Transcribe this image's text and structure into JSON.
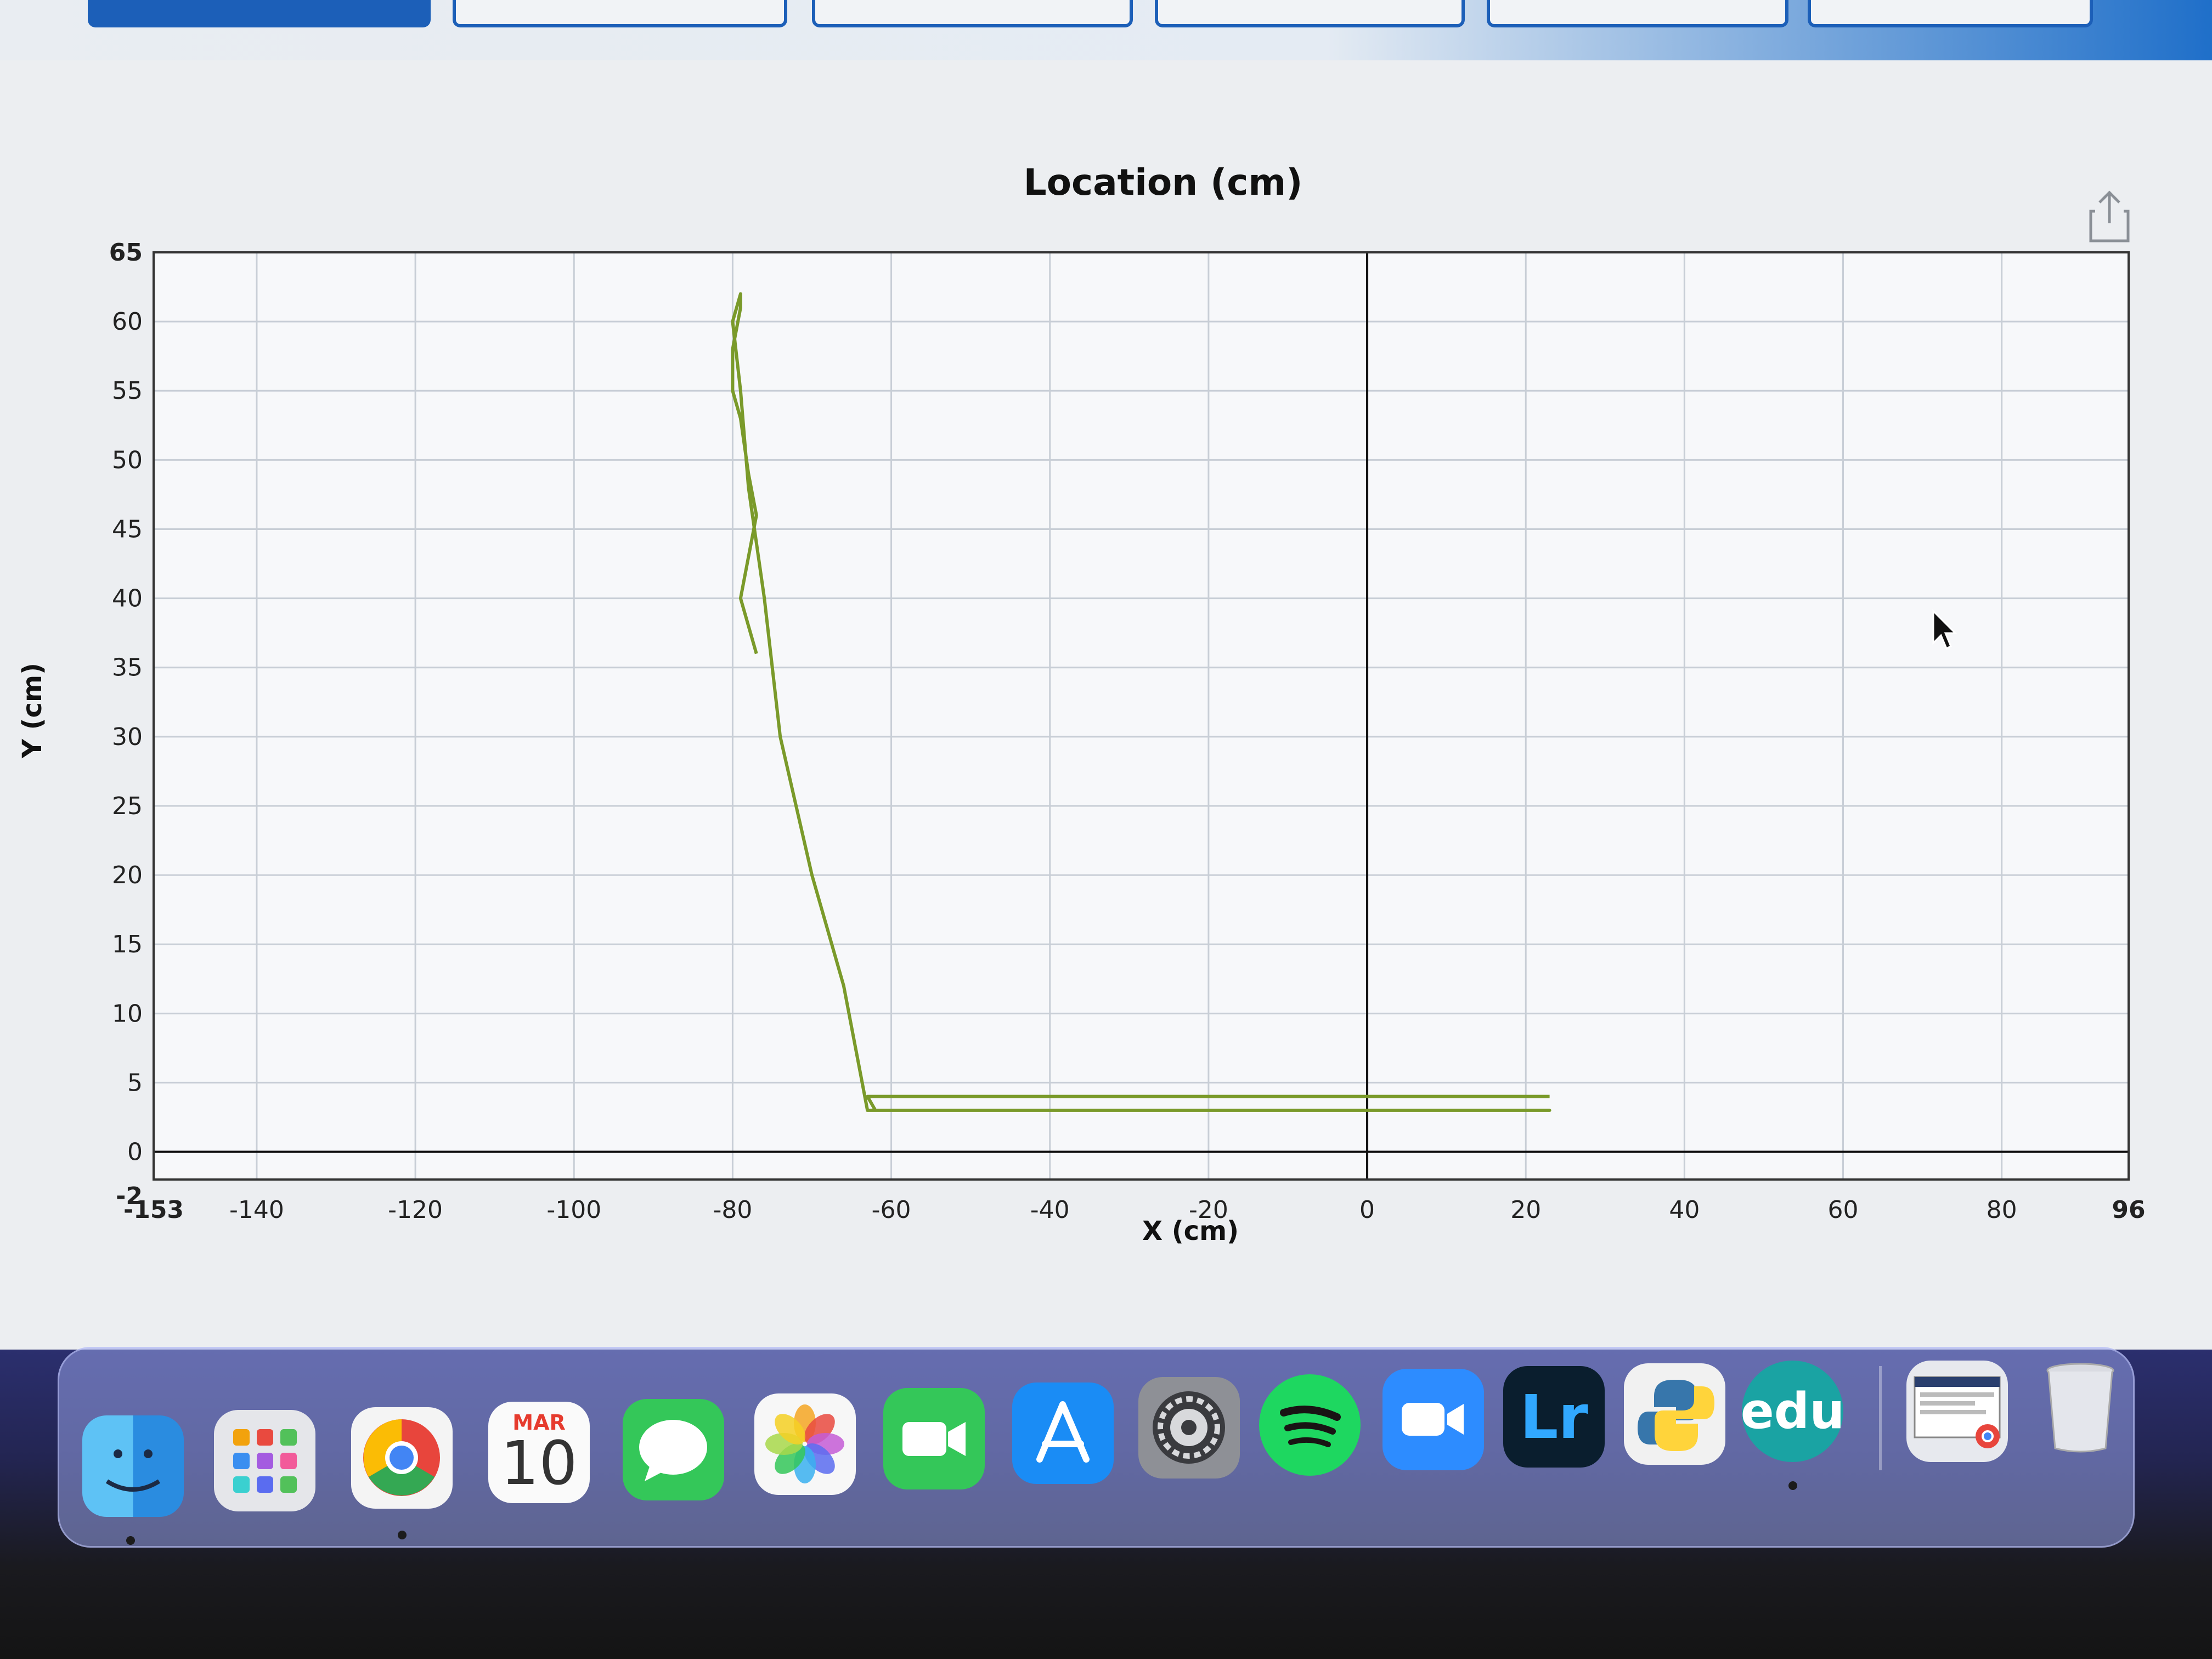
{
  "chart_data": {
    "type": "line",
    "title": "Location (cm)",
    "xlabel": "X (cm)",
    "ylabel": "Y (cm)",
    "xlim": [
      -153,
      96
    ],
    "ylim": [
      -2,
      65
    ],
    "x_ticks": [
      -153,
      -140,
      -120,
      -100,
      -80,
      -60,
      -40,
      -20,
      0,
      20,
      40,
      60,
      80,
      96
    ],
    "y_ticks": [
      -2,
      0,
      5,
      10,
      15,
      20,
      25,
      30,
      35,
      40,
      45,
      50,
      55,
      60,
      65
    ],
    "x_tick_labels": [
      "-153",
      "-140",
      "-120",
      "-100",
      "-80",
      "-60",
      "-40",
      "-20",
      "0",
      "20",
      "40",
      "60",
      "80",
      "96"
    ],
    "y_tick_labels": [
      "-2",
      "0",
      "5",
      "10",
      "15",
      "20",
      "25",
      "30",
      "35",
      "40",
      "45",
      "50",
      "55",
      "60",
      "65"
    ],
    "grid": true,
    "series": [
      {
        "color": "#7a9a2a",
        "x": [
          -77,
          -78,
          -79,
          -78,
          -77,
          -78,
          -79,
          -80,
          -80,
          -79,
          -79,
          -80,
          -79,
          -78,
          -76,
          -74,
          -70,
          -66,
          -64,
          -63,
          -62,
          -60,
          -57,
          -53,
          -50,
          -46,
          -43,
          -40,
          -37,
          -34,
          -31,
          -28,
          -25,
          -21,
          -18,
          -15,
          -13,
          -11,
          -8,
          -4,
          0,
          3,
          6,
          9,
          12,
          15,
          17,
          19,
          21,
          23,
          23,
          20,
          16,
          12,
          8,
          4,
          0,
          -3,
          -8,
          -12,
          -17,
          -22,
          -27,
          -32,
          -37,
          -42,
          -47,
          -52,
          -57,
          -62,
          -63,
          -60,
          -55,
          -50,
          -45,
          -40,
          -35,
          -30,
          -25,
          -20,
          -15,
          -10,
          -5,
          0,
          5,
          10,
          15,
          20,
          23
        ],
        "y": [
          36,
          38,
          40,
          43,
          46,
          49,
          53,
          55,
          58,
          61,
          62,
          60,
          55,
          48,
          40,
          30,
          20,
          12,
          6,
          3,
          3,
          3,
          3,
          3,
          3,
          3,
          3,
          3,
          3,
          3,
          3,
          3,
          3,
          3,
          3,
          3,
          3,
          3,
          3,
          3,
          3,
          3,
          3,
          3,
          3,
          3,
          3,
          3,
          3,
          3,
          3,
          3,
          3,
          3,
          3,
          3,
          3,
          3,
          3,
          3,
          3,
          3,
          3,
          3,
          3,
          3,
          3,
          3,
          3,
          3,
          4,
          4,
          4,
          4,
          4,
          4,
          4,
          4,
          4,
          4,
          4,
          4,
          4,
          4,
          4,
          4,
          4,
          4,
          4
        ]
      }
    ]
  },
  "dock": {
    "calendar_month": "MAR",
    "calendar_day": "10",
    "lightroom_label": "Lr",
    "edu_label": "edu"
  }
}
